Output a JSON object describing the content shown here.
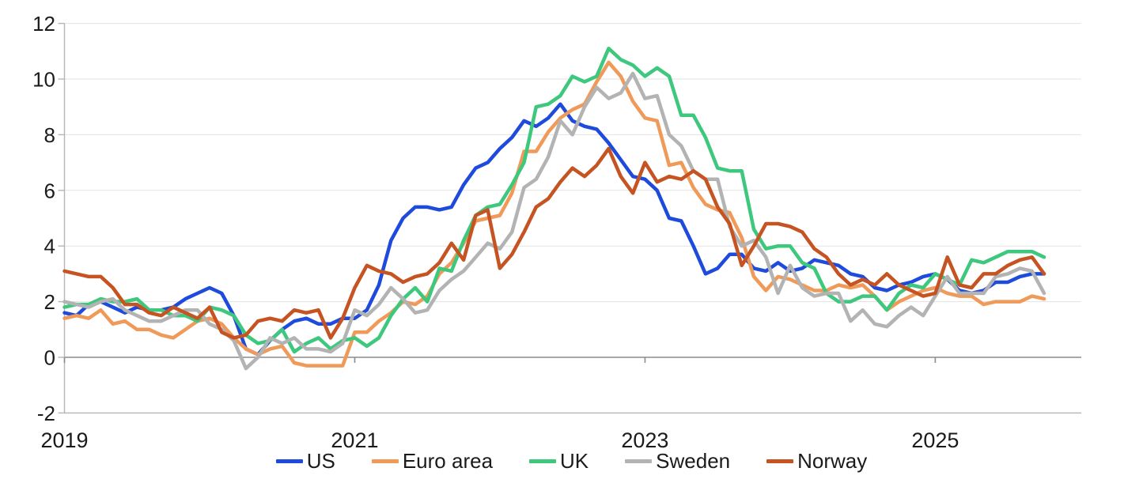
{
  "figure": {
    "background": "#ffffff",
    "text_color": "#1b1b1b",
    "grid_color": "#e3e3e3",
    "zero_line_color": "#8c8c8c",
    "axis_color": "#b5b5b5"
  },
  "chart_data": {
    "type": "line",
    "title": "",
    "xlabel": "",
    "ylabel": "",
    "x_unit": "month",
    "x_start": "2019-01",
    "x_end": "2025-10",
    "ylim": [
      -2,
      12
    ],
    "yticks": [
      -2,
      0,
      2,
      4,
      6,
      8,
      10,
      12
    ],
    "ytick_labels": [
      "-2",
      "0",
      "2",
      "4",
      "6",
      "8",
      "10",
      "12"
    ],
    "xticks": [
      {
        "label": "2019",
        "month_index": 0
      },
      {
        "label": "2021",
        "month_index": 24
      },
      {
        "label": "2023",
        "month_index": 48
      },
      {
        "label": "2025",
        "month_index": 72
      }
    ],
    "grid": "horizontal",
    "zero_axis_with_ticks": true,
    "legend_position": "bottom",
    "series": [
      {
        "name": "US",
        "color": "#1e4bdc",
        "values": [
          1.6,
          1.5,
          1.9,
          2.0,
          1.8,
          1.6,
          1.8,
          1.7,
          1.7,
          1.8,
          2.1,
          2.3,
          2.5,
          2.3,
          1.5,
          0.3,
          0.1,
          0.6,
          1.0,
          1.3,
          1.4,
          1.2,
          1.2,
          1.4,
          1.4,
          1.7,
          2.6,
          4.2,
          5.0,
          5.4,
          5.4,
          5.3,
          5.4,
          6.2,
          6.8,
          7.0,
          7.5,
          7.9,
          8.5,
          8.3,
          8.6,
          9.1,
          8.5,
          8.3,
          8.2,
          7.7,
          7.1,
          6.5,
          6.4,
          6.0,
          5.0,
          4.9,
          4.0,
          3.0,
          3.2,
          3.7,
          3.7,
          3.2,
          3.1,
          3.4,
          3.1,
          3.2,
          3.5,
          3.4,
          3.3,
          3.0,
          2.9,
          2.5,
          2.4,
          2.6,
          2.7,
          2.9,
          3.0,
          2.8,
          2.4,
          2.3,
          2.4,
          2.7,
          2.7,
          2.9,
          3.0,
          3.0
        ]
      },
      {
        "name": "Euro area",
        "color": "#f09a5a",
        "values": [
          1.4,
          1.5,
          1.4,
          1.7,
          1.2,
          1.3,
          1.0,
          1.0,
          0.8,
          0.7,
          1.0,
          1.3,
          1.4,
          1.2,
          0.7,
          0.3,
          0.1,
          0.3,
          0.4,
          -0.2,
          -0.3,
          -0.3,
          -0.3,
          -0.3,
          0.9,
          0.9,
          1.3,
          1.6,
          2.0,
          1.9,
          2.2,
          3.0,
          3.4,
          4.1,
          4.9,
          5.0,
          5.1,
          5.9,
          7.4,
          7.4,
          8.1,
          8.6,
          8.9,
          9.1,
          9.9,
          10.6,
          10.1,
          9.2,
          8.6,
          8.5,
          6.9,
          7.0,
          6.1,
          5.5,
          5.3,
          5.2,
          4.3,
          2.9,
          2.4,
          2.9,
          2.8,
          2.6,
          2.4,
          2.4,
          2.6,
          2.5,
          2.6,
          2.2,
          1.7,
          2.0,
          2.2,
          2.4,
          2.5,
          2.3,
          2.2,
          2.2,
          1.9,
          2.0,
          2.0,
          2.0,
          2.2,
          2.1
        ]
      },
      {
        "name": "UK",
        "color": "#3ec87d",
        "values": [
          1.8,
          1.9,
          1.9,
          2.1,
          2.0,
          2.0,
          2.1,
          1.7,
          1.7,
          1.5,
          1.5,
          1.3,
          1.8,
          1.7,
          1.5,
          0.8,
          0.5,
          0.6,
          1.0,
          0.2,
          0.5,
          0.7,
          0.3,
          0.6,
          0.7,
          0.4,
          0.7,
          1.5,
          2.1,
          2.5,
          2.0,
          3.2,
          3.1,
          4.2,
          5.1,
          5.4,
          5.5,
          6.2,
          7.0,
          9.0,
          9.1,
          9.4,
          10.1,
          9.9,
          10.1,
          11.1,
          10.7,
          10.5,
          10.1,
          10.4,
          10.1,
          8.7,
          8.7,
          7.9,
          6.8,
          6.7,
          6.7,
          4.6,
          3.9,
          4.0,
          4.0,
          3.4,
          3.2,
          2.3,
          2.0,
          2.0,
          2.2,
          2.2,
          1.7,
          2.3,
          2.6,
          2.5,
          3.0,
          2.8,
          2.6,
          3.5,
          3.4,
          3.6,
          3.8,
          3.8,
          3.8,
          3.6
        ]
      },
      {
        "name": "Sweden",
        "color": "#b3b3b3",
        "values": [
          2.0,
          1.9,
          1.8,
          2.0,
          2.1,
          1.7,
          1.5,
          1.3,
          1.3,
          1.5,
          1.7,
          1.7,
          1.2,
          1.0,
          0.6,
          -0.4,
          0.0,
          0.7,
          0.5,
          0.7,
          0.3,
          0.3,
          0.2,
          0.5,
          1.7,
          1.5,
          1.9,
          2.5,
          2.1,
          1.6,
          1.7,
          2.4,
          2.8,
          3.1,
          3.6,
          4.1,
          3.9,
          4.5,
          6.1,
          6.4,
          7.2,
          8.5,
          8.0,
          9.0,
          9.7,
          9.3,
          9.5,
          10.2,
          9.3,
          9.4,
          8.0,
          7.6,
          6.7,
          6.4,
          6.4,
          4.7,
          4.0,
          4.2,
          3.6,
          2.3,
          3.3,
          2.5,
          2.2,
          2.3,
          2.3,
          1.3,
          1.7,
          1.2,
          1.1,
          1.5,
          1.8,
          1.5,
          2.2,
          2.9,
          2.3,
          2.3,
          2.3,
          2.9,
          3.0,
          3.2,
          3.1,
          2.3
        ]
      },
      {
        "name": "Norway",
        "color": "#c65322",
        "values": [
          3.1,
          3.0,
          2.9,
          2.9,
          2.5,
          1.9,
          1.9,
          1.6,
          1.5,
          1.8,
          1.6,
          1.4,
          1.8,
          0.9,
          0.7,
          0.8,
          1.3,
          1.4,
          1.3,
          1.7,
          1.6,
          1.7,
          0.7,
          1.4,
          2.5,
          3.3,
          3.1,
          3.0,
          2.7,
          2.9,
          3.0,
          3.4,
          4.1,
          3.5,
          5.1,
          5.3,
          3.2,
          3.7,
          4.5,
          5.4,
          5.7,
          6.3,
          6.8,
          6.5,
          6.9,
          7.5,
          6.5,
          5.9,
          7.0,
          6.3,
          6.5,
          6.4,
          6.7,
          6.4,
          5.4,
          4.8,
          3.3,
          4.0,
          4.8,
          4.8,
          4.7,
          4.5,
          3.9,
          3.6,
          3.0,
          2.6,
          2.8,
          2.6,
          3.0,
          2.6,
          2.4,
          2.2,
          2.3,
          3.6,
          2.6,
          2.5,
          3.0,
          3.0,
          3.3,
          3.5,
          3.6,
          3.0
        ]
      }
    ]
  }
}
